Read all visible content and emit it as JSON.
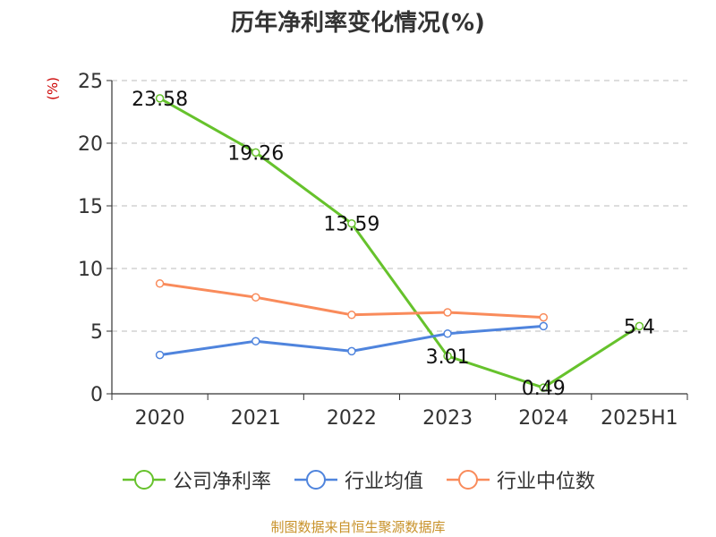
{
  "chart_data": {
    "type": "line",
    "title": "历年净利率变化情况(%)",
    "ylabel": "(%)",
    "categories": [
      "2020",
      "2021",
      "2022",
      "2023",
      "2024",
      "2025H1"
    ],
    "yticks": [
      "0",
      "5",
      "10",
      "15",
      "20",
      "25"
    ],
    "ylim": [
      0,
      25
    ],
    "grid": true,
    "legend_position": "bottom",
    "series": [
      {
        "name": "公司净利率",
        "color": "#66c22c",
        "values": [
          23.58,
          19.26,
          13.59,
          3.01,
          0.49,
          5.4
        ],
        "labels": [
          "23.58",
          "19.26",
          "13.59",
          "3.01",
          "0.49",
          "5.4"
        ]
      },
      {
        "name": "行业均值",
        "color": "#4f84dd",
        "values": [
          3.1,
          4.2,
          3.4,
          4.8,
          5.4,
          null
        ]
      },
      {
        "name": "行业中位数",
        "color": "#f98b5b",
        "values": [
          8.8,
          7.7,
          6.3,
          6.5,
          6.1,
          null
        ]
      }
    ]
  },
  "source": "制图数据来自恒生聚源数据库"
}
